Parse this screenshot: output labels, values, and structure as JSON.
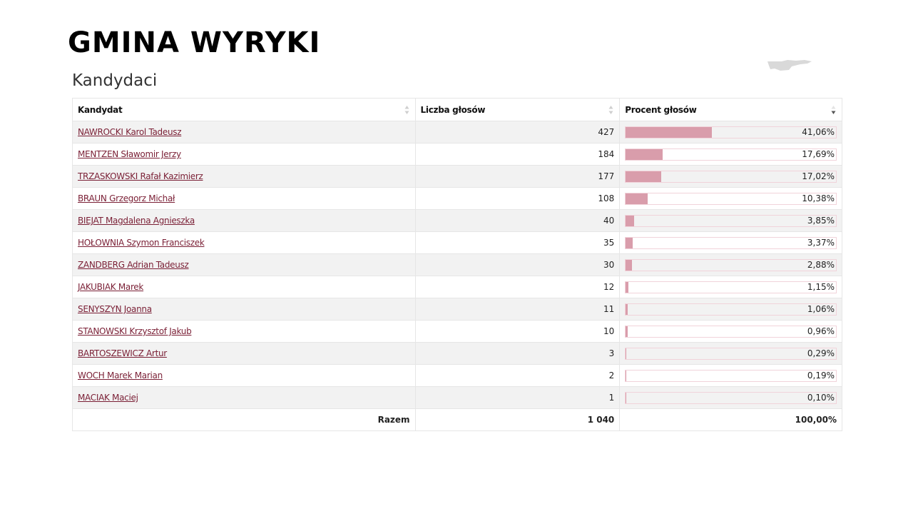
{
  "page": {
    "title": "GMINA WYRYKI",
    "section_title": "Kandydaci"
  },
  "colors": {
    "bar_fill": "#d99dab",
    "link": "#7a1f35",
    "row_alt": "#f2f2f2"
  },
  "table": {
    "headers": {
      "candidate": "Kandydat",
      "votes": "Liczba głosów",
      "percent": "Procent głosów"
    },
    "sort": {
      "candidate": "none",
      "votes": "none",
      "percent": "descending"
    },
    "rows": [
      {
        "name": "NAWROCKI Karol Tadeusz",
        "votes": "427",
        "percent": "41,06%",
        "share": 41.06
      },
      {
        "name": "MENTZEN Sławomir Jerzy",
        "votes": "184",
        "percent": "17,69%",
        "share": 17.69
      },
      {
        "name": "TRZASKOWSKI Rafał Kazimierz",
        "votes": "177",
        "percent": "17,02%",
        "share": 17.02
      },
      {
        "name": "BRAUN Grzegorz Michał",
        "votes": "108",
        "percent": "10,38%",
        "share": 10.38
      },
      {
        "name": "BIEJAT Magdalena Agnieszka",
        "votes": "40",
        "percent": "3,85%",
        "share": 3.85
      },
      {
        "name": "HOŁOWNIA Szymon Franciszek",
        "votes": "35",
        "percent": "3,37%",
        "share": 3.37
      },
      {
        "name": "ZANDBERG Adrian Tadeusz",
        "votes": "30",
        "percent": "2,88%",
        "share": 2.88
      },
      {
        "name": "JAKUBIAK Marek",
        "votes": "12",
        "percent": "1,15%",
        "share": 1.15
      },
      {
        "name": "SENYSZYN Joanna",
        "votes": "11",
        "percent": "1,06%",
        "share": 1.06
      },
      {
        "name": "STANOWSKI Krzysztof Jakub",
        "votes": "10",
        "percent": "0,96%",
        "share": 0.96
      },
      {
        "name": "BARTOSZEWICZ Artur",
        "votes": "3",
        "percent": "0,29%",
        "share": 0.29
      },
      {
        "name": "WOCH Marek Marian",
        "votes": "2",
        "percent": "0,19%",
        "share": 0.19
      },
      {
        "name": "MACIAK Maciej",
        "votes": "1",
        "percent": "0,10%",
        "share": 0.1
      }
    ],
    "footer": {
      "label": "Razem",
      "votes": "1 040",
      "percent": "100,00%"
    }
  }
}
